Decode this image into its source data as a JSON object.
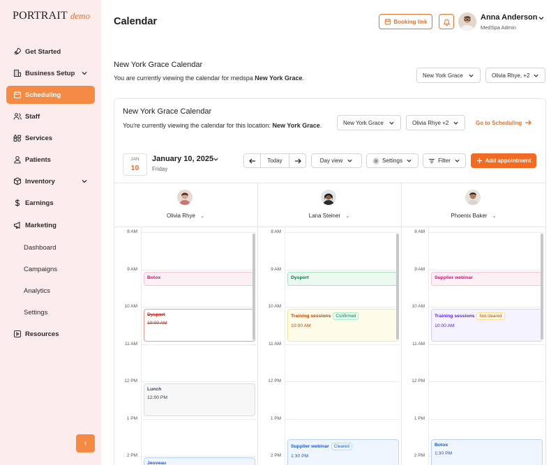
{
  "brand": {
    "name": "PORTRAIT",
    "suffix": "demo"
  },
  "nav": [
    {
      "label": "Get Started",
      "icon": "rocket-icon"
    },
    {
      "label": "Business Setup",
      "icon": "building-icon"
    },
    {
      "label": "Scheduling",
      "icon": "calendar-icon"
    },
    {
      "label": "Staff",
      "icon": "users-icon"
    },
    {
      "label": "Services",
      "icon": "tools-icon"
    },
    {
      "label": "Patients",
      "icon": "user-icon"
    },
    {
      "label": "Inventory",
      "icon": "box-icon"
    },
    {
      "label": "Earnings",
      "icon": "dollar-icon"
    },
    {
      "label": "Marketing",
      "icon": "megaphone-icon"
    }
  ],
  "marketing_sub": [
    "Dashboard",
    "Campaigns",
    "Analytics",
    "Settings"
  ],
  "resources": "Resources",
  "collapse": "‹",
  "header": {
    "title": "Calendar",
    "booking_link": "Booking link",
    "user_name": "Anna Anderson",
    "user_role": "MedSpa Admin"
  },
  "top_section": {
    "title": "New York Grace Calendar",
    "desc_prefix": "You are currently viewing the calendar for medspa ",
    "desc_bold": "New York Grace",
    "desc_suffix": ".",
    "location": "New York Grace",
    "staff": "Olivia Rhye, +2"
  },
  "card": {
    "title": "New York Grace Calendar",
    "desc_prefix": "You're currently viewing the calendar for this location: ",
    "desc_bold": "New York Grace",
    "desc_suffix": ".",
    "location": "New York Grace",
    "staff": "Olivia Rhye +2",
    "goto": "Go to Scheduling"
  },
  "date": {
    "month": "JAN",
    "day": "10",
    "title": "January 10, 2025",
    "weekday": "Friday"
  },
  "toolbar": {
    "today": "Today",
    "view": "Day view",
    "settings": "Settings",
    "filter": "Filter",
    "add": "Add appointment"
  },
  "staff": [
    "Olivia Rhye",
    "Lana Steiner",
    "Phoenix Baker"
  ],
  "hours": [
    "8 AM",
    "9 AM",
    "10 AM",
    "11 AM",
    "12 PM",
    "1 PM",
    "2 PM"
  ],
  "appointments": {
    "c1": [
      {
        "title": "Botox"
      },
      {
        "title": "Dysport",
        "time": "10:00 AM"
      },
      {
        "title": "Lunch",
        "time": "12:00 PM"
      },
      {
        "title": "Jeuveau"
      }
    ],
    "c2": [
      {
        "title": "Dysport"
      },
      {
        "title": "Training sessions",
        "badge": "Confirmed",
        "time": "10:00 AM"
      },
      {
        "title": "Supplier webinar",
        "badge": "Cleared",
        "time": "1:30 PM"
      }
    ],
    "c3": [
      {
        "title": "Supplier webinar"
      },
      {
        "title": "Training sessions",
        "badge": "Not cleared",
        "time": "10:00 AM"
      },
      {
        "title": "Botox",
        "time": "1:30 PM"
      }
    ]
  },
  "colors": {
    "accent": "#f26b23",
    "sidebar_bg": "#fdecec"
  }
}
